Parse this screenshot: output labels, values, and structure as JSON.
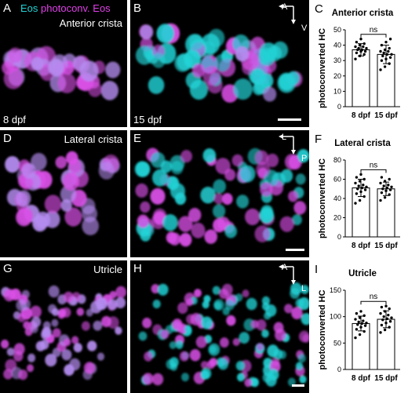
{
  "legend": {
    "eos": "Eos",
    "photoconv": "photoconv. Eos"
  },
  "panels": {
    "A": {
      "label": "A",
      "region": "Anterior crista",
      "age": "8 dpf"
    },
    "B": {
      "label": "B",
      "age": "15 dpf",
      "axis": [
        "A",
        "V"
      ]
    },
    "D": {
      "label": "D",
      "region": "Lateral crista"
    },
    "E": {
      "label": "E",
      "axis": [
        "L",
        "P"
      ]
    },
    "G": {
      "label": "G",
      "region": "Utricle"
    },
    "H": {
      "label": "H",
      "axis": [
        "A",
        "L"
      ]
    }
  },
  "colors": {
    "cyan": "#22d3d6",
    "magenta": "#d94fe6",
    "violet": "#b58cf0"
  },
  "chart_data": [
    {
      "panel": "C",
      "type": "bar",
      "title": "Anterior crista",
      "ylabel": "photoconverted HC",
      "categories": [
        "8 dpf",
        "15 dpf"
      ],
      "values": [
        37,
        34
      ],
      "sd": [
        4,
        6
      ],
      "ylim": [
        0,
        50
      ],
      "yticks": [
        "0",
        "10",
        "20",
        "30",
        "40",
        "50"
      ],
      "significance": "ns",
      "points": [
        [
          31,
          33,
          34,
          35,
          36,
          36,
          37,
          37,
          38,
          38,
          39,
          39,
          40,
          41,
          42,
          44
        ],
        [
          24,
          26,
          28,
          30,
          31,
          32,
          33,
          34,
          34,
          35,
          36,
          36,
          37,
          38,
          40,
          42,
          44
        ]
      ]
    },
    {
      "panel": "F",
      "type": "bar",
      "title": "Lateral crista",
      "ylabel": "photoconverted HC",
      "categories": [
        "8 dpf",
        "15 dpf"
      ],
      "values": [
        51,
        50
      ],
      "sd": [
        9,
        7
      ],
      "ylim": [
        0,
        80
      ],
      "yticks": [
        "0",
        "20",
        "40",
        "60",
        "80"
      ],
      "significance": "ns",
      "points": [
        [
          35,
          38,
          42,
          45,
          47,
          49,
          50,
          51,
          52,
          53,
          54,
          56,
          58,
          60,
          62,
          65
        ],
        [
          38,
          41,
          44,
          46,
          48,
          49,
          50,
          51,
          52,
          53,
          54,
          56,
          58,
          60,
          62
        ]
      ]
    },
    {
      "panel": "I",
      "type": "bar",
      "title": "Utricle",
      "ylabel": "photoconverted HC",
      "categories": [
        "8 dpf",
        "15 dpf"
      ],
      "values": [
        87,
        95
      ],
      "sd": [
        14,
        16
      ],
      "ylim": [
        0,
        150
      ],
      "yticks": [
        "0",
        "50",
        "100",
        "150"
      ],
      "significance": "ns",
      "points": [
        [
          60,
          66,
          72,
          76,
          80,
          83,
          85,
          87,
          88,
          90,
          92,
          95,
          98,
          102,
          106,
          110
        ],
        [
          70,
          75,
          80,
          84,
          88,
          91,
          94,
          96,
          98,
          100,
          103,
          106,
          110,
          115,
          118,
          120
        ]
      ]
    }
  ]
}
